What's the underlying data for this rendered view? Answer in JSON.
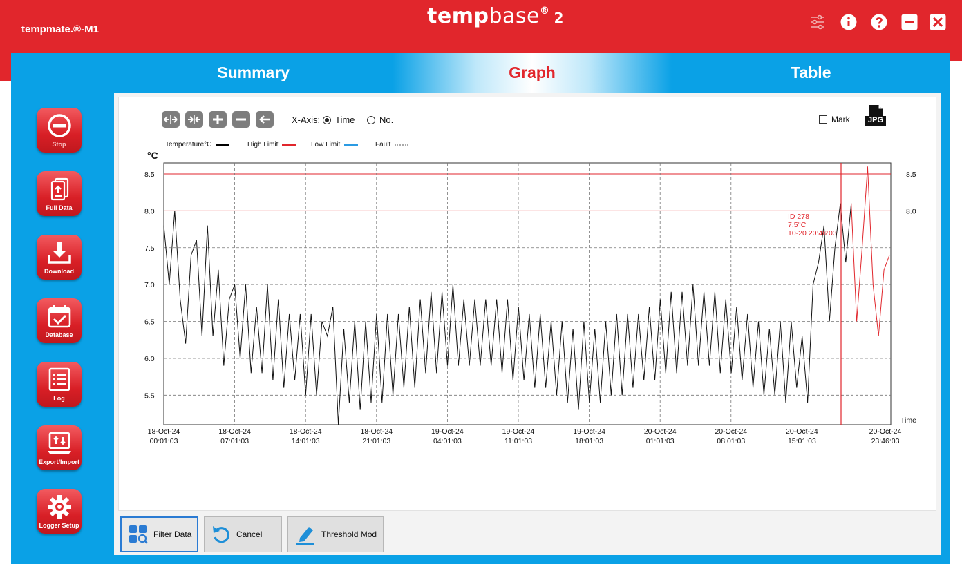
{
  "app": {
    "device": "tempmate.®-M1",
    "logo": {
      "a": "temp",
      "b": "base",
      "reg": "®",
      "ver": "2"
    }
  },
  "tabs": [
    {
      "label": "Summary",
      "active": false
    },
    {
      "label": "Graph",
      "active": true
    },
    {
      "label": "Table",
      "active": false
    }
  ],
  "sidebar": [
    {
      "label": "Stop",
      "icon": "stop-icon",
      "dim": true
    },
    {
      "label": "Full Data",
      "icon": "full-data-icon",
      "dim": false
    },
    {
      "label": "Download",
      "icon": "download-icon",
      "dim": false
    },
    {
      "label": "Database",
      "icon": "database-icon",
      "dim": false
    },
    {
      "label": "Log",
      "icon": "log-icon",
      "dim": false
    },
    {
      "label": "Export/Import",
      "icon": "export-import-icon",
      "dim": false
    },
    {
      "label": "Logger Setup",
      "icon": "logger-setup-icon",
      "dim": false
    }
  ],
  "toolbar": {
    "xaxis_label": "X-Axis:",
    "opt_time": "Time",
    "opt_no": "No.",
    "mark_label": "Mark",
    "jpg_label": "JPG"
  },
  "legend": [
    {
      "label": "Temperature°C",
      "color": "#000000",
      "style": "solid"
    },
    {
      "label": "High Limit",
      "color": "#e1262c",
      "style": "solid"
    },
    {
      "label": "Low Limit",
      "color": "#2b9be3",
      "style": "solid"
    },
    {
      "label": "Fault",
      "color": "#aaaaaa",
      "style": "dotted"
    }
  ],
  "chart_data": {
    "type": "line",
    "title": "",
    "ylabel": "°C",
    "xlabel": "Time",
    "ylim": [
      5.1,
      8.65
    ],
    "y_ticks": [
      "5.5",
      "6.0",
      "6.5",
      "7.0",
      "7.5",
      "8.0",
      "8.5"
    ],
    "right_ticks": [
      "8.0",
      "8.5"
    ],
    "x_ticks": [
      {
        "date": "18-Oct-24",
        "time": "00:01:03"
      },
      {
        "date": "18-Oct-24",
        "time": "07:01:03"
      },
      {
        "date": "18-Oct-24",
        "time": "14:01:03"
      },
      {
        "date": "18-Oct-24",
        "time": "21:01:03"
      },
      {
        "date": "19-Oct-24",
        "time": "04:01:03"
      },
      {
        "date": "19-Oct-24",
        "time": "11:01:03"
      },
      {
        "date": "19-Oct-24",
        "time": "18:01:03"
      },
      {
        "date": "20-Oct-24",
        "time": "01:01:03"
      },
      {
        "date": "20-Oct-24",
        "time": "08:01:03"
      },
      {
        "date": "20-Oct-24",
        "time": "15:01:03"
      },
      {
        "date": "20-Oct-24",
        "time": "23:46:03"
      }
    ],
    "limits": {
      "high_upper": 8.5,
      "high_lower": 8.0
    },
    "marker": {
      "id": "ID 278",
      "value": "7.5°C",
      "time": "10-20 20:46:03",
      "x_index": 278
    },
    "series": [
      {
        "name": "Temperature°C",
        "color": "#000000",
        "values": [
          7.8,
          7.0,
          8.0,
          6.8,
          6.2,
          7.4,
          7.6,
          6.3,
          7.8,
          6.3,
          7.2,
          5.9,
          6.8,
          7.0,
          6.0,
          7.0,
          5.8,
          6.7,
          5.8,
          7.0,
          5.7,
          6.8,
          5.6,
          6.6,
          5.7,
          6.6,
          5.5,
          6.6,
          5.5,
          6.5,
          6.3,
          6.7,
          5.1,
          6.4,
          5.4,
          6.5,
          5.3,
          6.5,
          5.4,
          6.6,
          5.4,
          6.6,
          5.5,
          6.6,
          5.6,
          6.7,
          5.6,
          6.8,
          5.8,
          6.9,
          5.8,
          6.9,
          5.9,
          7.0,
          5.9,
          6.8,
          5.9,
          6.8,
          5.9,
          6.8,
          5.9,
          6.8,
          5.8,
          6.8,
          5.7,
          6.7,
          5.7,
          6.6,
          5.6,
          6.6,
          5.6,
          6.5,
          5.5,
          6.5,
          5.4,
          6.4,
          5.3,
          6.5,
          5.4,
          6.4,
          5.4,
          6.5,
          5.5,
          6.6,
          5.5,
          6.6,
          5.6,
          6.6,
          5.7,
          6.7,
          5.7,
          6.8,
          5.8,
          6.9,
          5.8,
          6.9,
          5.9,
          7.0,
          5.9,
          6.9,
          5.9,
          6.9,
          5.8,
          6.8,
          5.8,
          6.7,
          5.7,
          6.6,
          5.6,
          6.5,
          5.5,
          6.4,
          5.5,
          6.5,
          5.4,
          6.5,
          5.6,
          6.3,
          5.4,
          7.0,
          7.3,
          7.8,
          6.5,
          7.5,
          8.1,
          7.3,
          8.1,
          6.5,
          7.5,
          8.6,
          7.0,
          6.3,
          7.2,
          7.4
        ],
        "last_segment_high": true
      }
    ]
  },
  "bottom": {
    "filter": "Filter Data",
    "cancel": "Cancel",
    "threshold": "Threshold Mod"
  }
}
